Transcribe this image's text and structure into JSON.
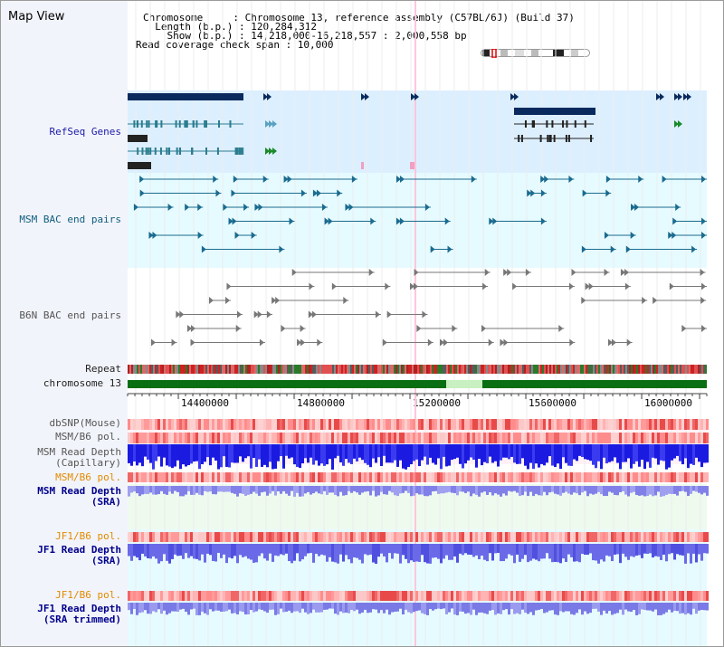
{
  "app": {
    "title": "Map View"
  },
  "header": {
    "chromosome_label": "Chromosome     : Chromosome 13, reference assembly (C57BL/6J) (Build 37)",
    "length_label": "  Length (b.p.) : 120,284,312",
    "show_label": "    Show (b.p.) : 14,218,000-16,218,557 : 2,000,558 bp",
    "coverage_label": "Read coverage check span : 10,000"
  },
  "tracks": {
    "refseq": "RefSeq Genes",
    "msm_bac": "MSM BAC end pairs",
    "b6n_bac": "B6N BAC end pairs",
    "repeat": "Repeat",
    "chromosome": "chromosome 13",
    "dbsnp": "dbSNP(Mouse)",
    "msm_b6_pol_1": "MSM/B6 pol.",
    "msm_read_depth_cap": "MSM Read Depth\n(Capillary)",
    "msm_b6_pol_2": "MSM/B6 pol.",
    "msm_read_depth_sra": "MSM Read Depth\n(SRA)",
    "jf1_b6_pol_1": "JF1/B6 pol.",
    "jf1_read_depth_sra": "JF1 Read Depth\n(SRA)",
    "jf1_b6_pol_2": "JF1/B6 pol.",
    "jf1_read_depth_trim": "JF1 Read Depth\n(SRA trimmed)"
  },
  "axis": {
    "ticks": [
      "14400000",
      "14800000",
      "15200000",
      "15600000",
      "16000000"
    ]
  },
  "colors": {
    "refseq_bg": "#dcefff",
    "msm_bg": "#e6fbff",
    "gene_dark": "#0a2a5e",
    "gene_teal": "#1a6b8f",
    "bac_msm": "#1a6b8f",
    "bac_b6n": "#777777",
    "chrom_green": "#0a6e12",
    "depth_blue": "#1a1ae0",
    "depth_light": "#6a6ae8"
  }
}
